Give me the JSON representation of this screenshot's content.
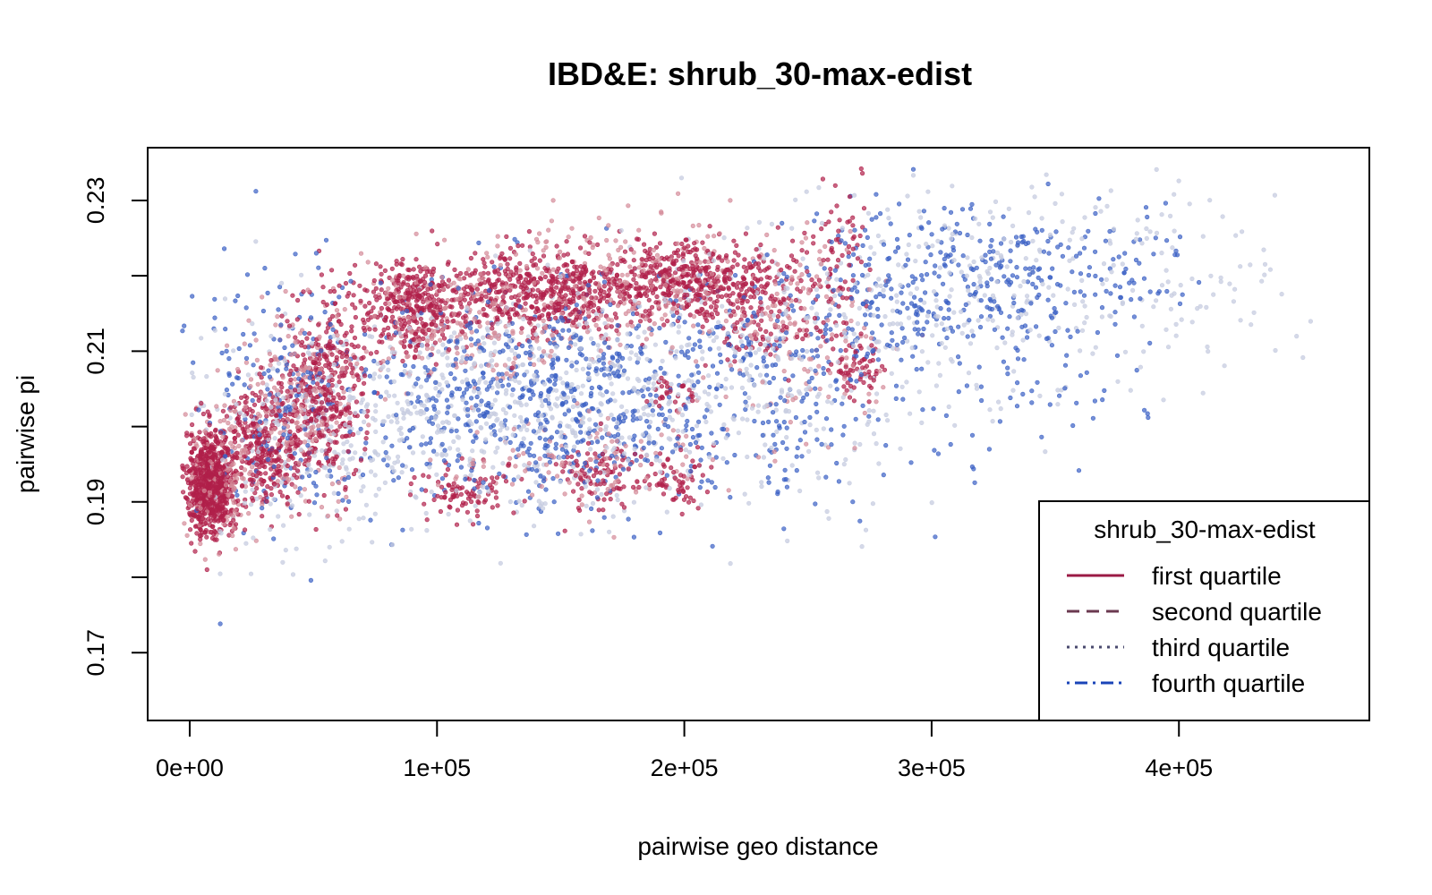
{
  "chart_data": {
    "type": "scatter",
    "title": "IBD&E: shrub_30-max-edist",
    "xlabel": "pairwise geo distance",
    "ylabel": "pairwise pi",
    "xlim": [
      -17000,
      477000
    ],
    "ylim": [
      0.161,
      0.237
    ],
    "x_ticks": [
      {
        "value": 0,
        "label": "0e+00"
      },
      {
        "value": 100000,
        "label": "1e+05"
      },
      {
        "value": 200000,
        "label": "2e+05"
      },
      {
        "value": 300000,
        "label": "3e+05"
      },
      {
        "value": 400000,
        "label": "4e+05"
      }
    ],
    "y_ticks": [
      {
        "value": 0.17,
        "label": "0.17"
      },
      {
        "value": 0.18,
        "label": ""
      },
      {
        "value": 0.19,
        "label": "0.19"
      },
      {
        "value": 0.2,
        "label": ""
      },
      {
        "value": 0.21,
        "label": "0.21"
      },
      {
        "value": 0.22,
        "label": ""
      },
      {
        "value": 0.23,
        "label": "0.23"
      }
    ],
    "grid": false,
    "legend": {
      "title": "shrub_30-max-edist",
      "position": "bottom-right",
      "entries": [
        {
          "label": "first quartile",
          "color": "#9b1a45",
          "dash": "solid"
        },
        {
          "label": "second quartile",
          "color": "#6b3950",
          "dash": "dashed"
        },
        {
          "label": "third quartile",
          "color": "#4a4a6e",
          "dash": "dotted"
        },
        {
          "label": "fourth quartile",
          "color": "#1a44b8",
          "dash": "dotdash"
        }
      ]
    },
    "series": [
      {
        "quartile": 1,
        "color": "#b0204a",
        "clusters": [
          {
            "x": 8000,
            "y": 0.1925,
            "sx": 5000,
            "sy": 0.0035,
            "n": 700
          },
          {
            "x": 30000,
            "y": 0.1975,
            "sx": 8000,
            "sy": 0.004,
            "n": 300
          },
          {
            "x": 55000,
            "y": 0.2045,
            "sx": 8000,
            "sy": 0.006,
            "n": 350
          },
          {
            "x": 90000,
            "y": 0.216,
            "sx": 12000,
            "sy": 0.003,
            "n": 350
          },
          {
            "x": 140000,
            "y": 0.2175,
            "sx": 20000,
            "sy": 0.003,
            "n": 450
          },
          {
            "x": 200000,
            "y": 0.2195,
            "sx": 20000,
            "sy": 0.0025,
            "n": 450
          },
          {
            "x": 110000,
            "y": 0.1915,
            "sx": 10000,
            "sy": 0.002,
            "n": 90
          },
          {
            "x": 165000,
            "y": 0.1935,
            "sx": 8000,
            "sy": 0.0025,
            "n": 90
          },
          {
            "x": 198000,
            "y": 0.1935,
            "sx": 6000,
            "sy": 0.002,
            "n": 60
          },
          {
            "x": 228000,
            "y": 0.2155,
            "sx": 10000,
            "sy": 0.004,
            "n": 120
          },
          {
            "x": 260000,
            "y": 0.2205,
            "sx": 6000,
            "sy": 0.006,
            "n": 90
          },
          {
            "x": 270000,
            "y": 0.2075,
            "sx": 5000,
            "sy": 0.002,
            "n": 60
          },
          {
            "x": 195000,
            "y": 0.2045,
            "sx": 6000,
            "sy": 0.001,
            "n": 30
          }
        ]
      },
      {
        "quartile": 2,
        "color": "#d48a98",
        "clusters": [
          {
            "x": 12000,
            "y": 0.1935,
            "sx": 7000,
            "sy": 0.004,
            "n": 180
          },
          {
            "x": 45000,
            "y": 0.2025,
            "sx": 12000,
            "sy": 0.006,
            "n": 220
          },
          {
            "x": 110000,
            "y": 0.2145,
            "sx": 25000,
            "sy": 0.004,
            "n": 260
          },
          {
            "x": 185000,
            "y": 0.219,
            "sx": 30000,
            "sy": 0.004,
            "n": 260
          },
          {
            "x": 160000,
            "y": 0.1955,
            "sx": 30000,
            "sy": 0.003,
            "n": 120
          },
          {
            "x": 250000,
            "y": 0.2115,
            "sx": 15000,
            "sy": 0.006,
            "n": 120
          }
        ]
      },
      {
        "quartile": 3,
        "color": "#c7cce0",
        "clusters": [
          {
            "x": 40000,
            "y": 0.1995,
            "sx": 20000,
            "sy": 0.008,
            "n": 180
          },
          {
            "x": 130000,
            "y": 0.2025,
            "sx": 45000,
            "sy": 0.007,
            "n": 650
          },
          {
            "x": 230000,
            "y": 0.2085,
            "sx": 35000,
            "sy": 0.009,
            "n": 280
          },
          {
            "x": 320000,
            "y": 0.218,
            "sx": 40000,
            "sy": 0.008,
            "n": 260
          },
          {
            "x": 410000,
            "y": 0.219,
            "sx": 25000,
            "sy": 0.007,
            "n": 60
          }
        ]
      },
      {
        "quartile": 4,
        "color": "#3a60c4",
        "clusters": [
          {
            "x": 35000,
            "y": 0.2025,
            "sx": 18000,
            "sy": 0.009,
            "n": 200
          },
          {
            "x": 140000,
            "y": 0.2035,
            "sx": 40000,
            "sy": 0.007,
            "n": 650
          },
          {
            "x": 235000,
            "y": 0.2075,
            "sx": 30000,
            "sy": 0.008,
            "n": 260
          },
          {
            "x": 300000,
            "y": 0.2195,
            "sx": 25000,
            "sy": 0.005,
            "n": 220
          },
          {
            "x": 355000,
            "y": 0.2205,
            "sx": 25000,
            "sy": 0.004,
            "n": 140
          },
          {
            "x": 330000,
            "y": 0.2055,
            "sx": 30000,
            "sy": 0.005,
            "n": 60
          }
        ]
      }
    ]
  }
}
